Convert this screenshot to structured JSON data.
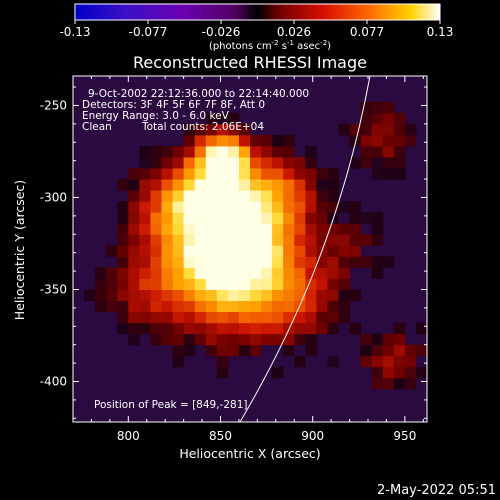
{
  "chart_data": {
    "type": "heatmap",
    "title": "Reconstructed RHESSI Image",
    "xlabel": "Heliocentric X (arcsec)",
    "ylabel": "Heliocentric Y (arcsec)",
    "xlim": [
      770,
      962
    ],
    "ylim": [
      -422,
      -234
    ],
    "xticks": [
      800,
      850,
      900,
      950
    ],
    "yticks": [
      -250,
      -300,
      -350,
      -400
    ],
    "colormap": "RHESSI color table (blue-purple-red-yellow-white)",
    "colorbar": {
      "min": -0.13,
      "max": 0.13,
      "tick_labels": [
        "-0.13",
        "-0.077",
        "-0.026",
        "0.026",
        "0.077",
        "0.13"
      ],
      "unit_prefix": "(photons cm",
      "unit_exp1": "-2",
      "unit_mid": " s",
      "unit_exp2": "-1",
      "unit_mid2": " asec",
      "unit_exp3": "-2",
      "unit_suffix": ")"
    },
    "annotations": {
      "time_range": "9-Oct-2002 22:12:36.000 to 22:14:40.000",
      "detectors": "Detectors: 3F 4F 5F 6F 7F 8F, Att 0",
      "energy_range": "Energy Range: 3.0 - 6.0 keV",
      "method": "Clean",
      "total_counts": "Total counts: 2.06E+04",
      "peak": "Position of Peak = [849,-281]"
    },
    "peak_position": [
      849,
      -281
    ],
    "grid": false,
    "legend": "none"
  },
  "footer": {
    "timestamp": "2-May-2022 05:51"
  }
}
